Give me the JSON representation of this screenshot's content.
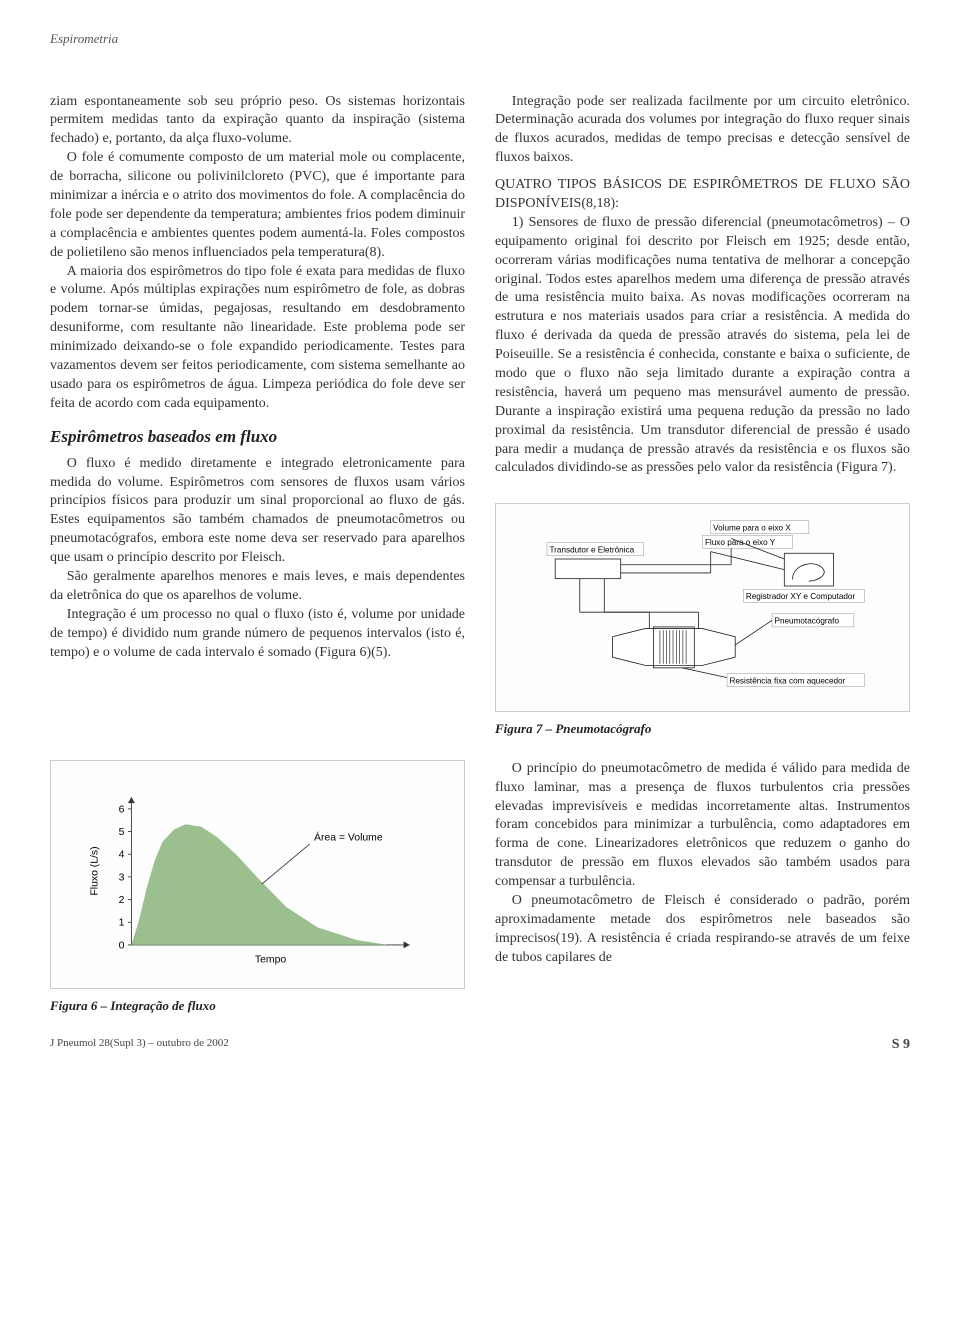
{
  "running_head": "Espirometria",
  "left_col": {
    "p1": "ziam espontaneamente sob seu próprio peso. Os sistemas horizontais permitem medidas tanto da expiração quanto da inspiração (sistema fechado) e, portanto, da alça fluxo-volume.",
    "p2": "O fole é comumente composto de um material mole ou complacente, de borracha, silicone ou polivinilcloreto (PVC), que é importante para minimizar a inércia e o atrito dos movimentos do fole. A complacência do fole pode ser dependente da temperatura; ambientes frios podem diminuir a complacência e ambientes quentes podem aumentá-la. Foles compostos de polietileno são menos influenciados pela temperatura(8).",
    "p3": "A maioria dos espirômetros do tipo fole é exata para medidas de fluxo e volume. Após múltiplas expirações num espirômetro de fole, as dobras podem tornar-se úmidas, pegajosas, resultando em desdobramento desuniforme, com resultante não linearidade. Este problema pode ser minimizado deixando-se o fole expandido periodicamente. Testes para vazamentos devem ser feitos periodicamente, com sistema semelhante ao usado para os espirômetros de água. Limpeza periódica do fole deve ser feita de acordo com cada equipamento.",
    "h_fluxo": "Espirômetros baseados em fluxo",
    "p4": "O fluxo é medido diretamente e integrado eletronicamente para medida do volume. Espirômetros com sensores de fluxos usam vários princípios físicos para produzir um sinal proporcional ao fluxo de gás. Estes equipamentos são também chamados de pneumotacômetros ou pneumotacógrafos, embora este nome deva ser reservado para aparelhos que usam o princípio descrito por Fleisch.",
    "p5": "São geralmente aparelhos menores e mais leves, e mais dependentes da eletrônica do que os aparelhos de volume.",
    "p6": "Integração é um processo no qual o fluxo (isto é, volume por unidade de tempo) é dividido num grande número de pequenos intervalos (isto é, tempo) e o volume de cada intervalo é somado (Figura 6)(5)."
  },
  "right_col": {
    "p1": "Integração pode ser realizada facilmente por um circuito eletrônico. Determinação acurada dos volumes por integração do fluxo requer sinais de fluxos acurados, medidas de tempo precisas e detecção sensível de fluxos baixos.",
    "p2a": "QUATRO TIPOS BÁSICOS DE ESPIRÔMETROS DE FLUXO SÃO DISPONÍVEIS",
    "p2b": "(8,18):",
    "p3": "1) Sensores de fluxo de pressão diferencial (pneumotacômetros) – O equipamento original foi descrito por Fleisch em 1925; desde então, ocorreram várias modificações numa tentativa de melhorar a concepção original. Todos estes aparelhos medem uma diferença de pressão através de uma resistência muito baixa. As novas modificações ocorreram na estrutura e nos materiais usados para criar a resistência. A medida do fluxo é derivada da queda de pressão através do sistema, pela lei de Poiseuille. Se a resistência é conhecida, constante e baixa o suficiente, de modo que o fluxo não seja limitado durante a expiração contra a resistência, haverá um pequeno mas mensurável aumento de pressão. Durante a inspiração existirá uma pequena redução da pressão no lado proximal da resistência. Um transdutor diferencial de pressão é usado para medir a mudança de pressão através da resistência e os fluxos são calculados dividindo-se as pressões pelo valor da resistência (Figura 7)."
  },
  "fig7": {
    "caption": "Figura 7 – Pneumotacógrafo",
    "labels": {
      "transdutor": "Transdutor e Eletrônica",
      "vol_x": "Volume para o eixo X",
      "fluxo_y": "Fluxo para o eixo Y",
      "registrador": "Registrador XY e Computador",
      "pneumo": "Pneumotacógrafo",
      "resist": "Resistência fixa com aquecedor"
    },
    "colors": {
      "stroke": "#222222",
      "box_fill": "#ffffff",
      "label_border": "#808080",
      "text": "#000000"
    }
  },
  "fig6": {
    "caption": "Figura 6 – Integração de fluxo",
    "ylabel": "Fluxo (L/s)",
    "xlabel": "Tempo",
    "area_label": "Área = Volume",
    "yticks": [
      0,
      1,
      2,
      3,
      4,
      5,
      6
    ],
    "curve_pts": [
      [
        0,
        0
      ],
      [
        10,
        20
      ],
      [
        20,
        46
      ],
      [
        30,
        67
      ],
      [
        40,
        82
      ],
      [
        55,
        92
      ],
      [
        70,
        96
      ],
      [
        90,
        94
      ],
      [
        110,
        86
      ],
      [
        135,
        72
      ],
      [
        165,
        52
      ],
      [
        200,
        30
      ],
      [
        240,
        14
      ],
      [
        290,
        4
      ],
      [
        330,
        0
      ]
    ],
    "colors": {
      "fill": "#9bbf8f",
      "axis": "#333333",
      "text": "#000000"
    }
  },
  "bottom_right": {
    "p1": "O princípio do pneumotacômetro de medida é válido para medida de fluxo laminar, mas a presença de fluxos turbulentos cria pressões elevadas imprevisíveis e medidas incorretamente altas. Instrumentos foram concebidos para minimizar a turbulência, como adaptadores em forma de cone. Linearizadores eletrônicos que reduzem o ganho do transdutor de pressão em fluxos elevados são também usados para compensar a turbulência.",
    "p2": "O pneumotacômetro de Fleisch é considerado o padrão, porém aproximadamente metade dos espirômetros nele baseados são imprecisos(19). A resistência é criada respirando-se através de um feixe de tubos capilares de"
  },
  "footer": {
    "journal": "J Pneumol 28(Supl 3) – outubro de 2002",
    "page": "S 9"
  }
}
